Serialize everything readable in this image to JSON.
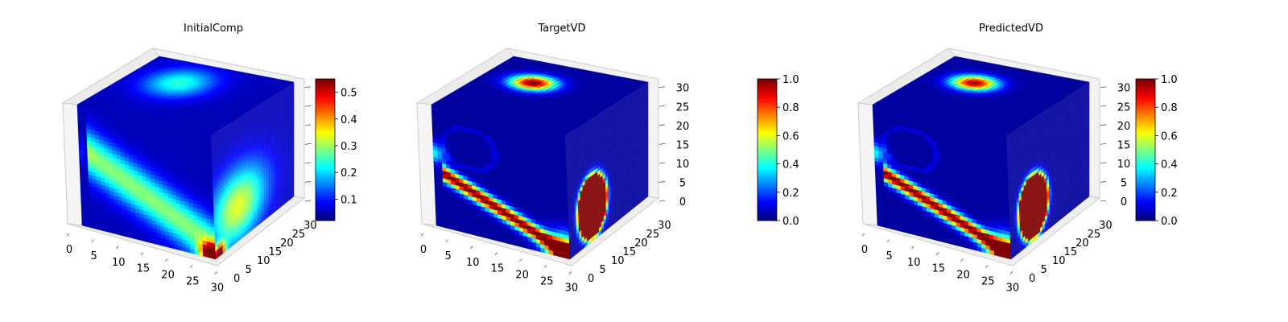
{
  "chart_data": [
    {
      "type": "voxel-3d",
      "title": "InitialComp",
      "axes": {
        "x_ticks": [
          "0",
          "5",
          "10",
          "15",
          "20",
          "25",
          "30"
        ],
        "y_ticks": [
          "0",
          "5",
          "10",
          "15",
          "20",
          "25",
          "30"
        ],
        "z_ticks": [
          "0",
          "5",
          "10",
          "15",
          "20",
          "25",
          "30"
        ],
        "z_tick_labels_shown": false
      },
      "colorbar": {
        "colormap": "jet",
        "range": [
          0.02,
          0.55
        ],
        "ticks": [
          "0.1",
          "0.2",
          "0.3",
          "0.4",
          "0.5"
        ],
        "tick_values": [
          0.1,
          0.2,
          0.3,
          0.4,
          0.5
        ]
      },
      "features": {
        "top_blob_peak": 0.2,
        "front_band_peak": 0.25,
        "corner_peak": 0.55,
        "right_face_peak": 0.3
      }
    },
    {
      "type": "voxel-3d",
      "title": "TargetVD",
      "axes": {
        "x_ticks": [
          "0",
          "5",
          "10",
          "15",
          "20",
          "25",
          "30"
        ],
        "y_ticks": [
          "0",
          "5",
          "10",
          "15",
          "20",
          "25",
          "30"
        ],
        "z_ticks": [
          "0",
          "5",
          "10",
          "15",
          "20",
          "25",
          "30"
        ],
        "z_tick_labels_shown": true
      },
      "colorbar": {
        "colormap": "jet",
        "range": [
          0.0,
          1.0
        ],
        "ticks": [
          "0.0",
          "0.2",
          "0.4",
          "0.6",
          "0.8",
          "1.0"
        ],
        "tick_values": [
          0.0,
          0.2,
          0.4,
          0.6,
          0.8,
          1.0
        ]
      },
      "features": {
        "top_blob_peak": 1.0,
        "front_band_peak": 1.0,
        "corner_peak": 1.0,
        "right_face_peak": 1.0
      }
    },
    {
      "type": "voxel-3d",
      "title": "PredictedVD",
      "axes": {
        "x_ticks": [
          "0",
          "5",
          "10",
          "15",
          "20",
          "25",
          "30"
        ],
        "y_ticks": [
          "0",
          "5",
          "10",
          "15",
          "20",
          "25",
          "30"
        ],
        "z_ticks": [
          "0",
          "5",
          "10",
          "15",
          "20",
          "25",
          "30"
        ],
        "z_tick_labels_shown": true
      },
      "colorbar": {
        "colormap": "jet",
        "range": [
          0.0,
          1.0
        ],
        "ticks": [
          "0.0",
          "0.2",
          "0.4",
          "0.6",
          "0.8",
          "1.0"
        ],
        "tick_values": [
          0.0,
          0.2,
          0.4,
          0.6,
          0.8,
          1.0
        ]
      },
      "features": {
        "top_blob_peak": 0.95,
        "front_band_peak": 1.0,
        "corner_peak": 1.0,
        "right_face_peak": 1.0
      }
    }
  ]
}
